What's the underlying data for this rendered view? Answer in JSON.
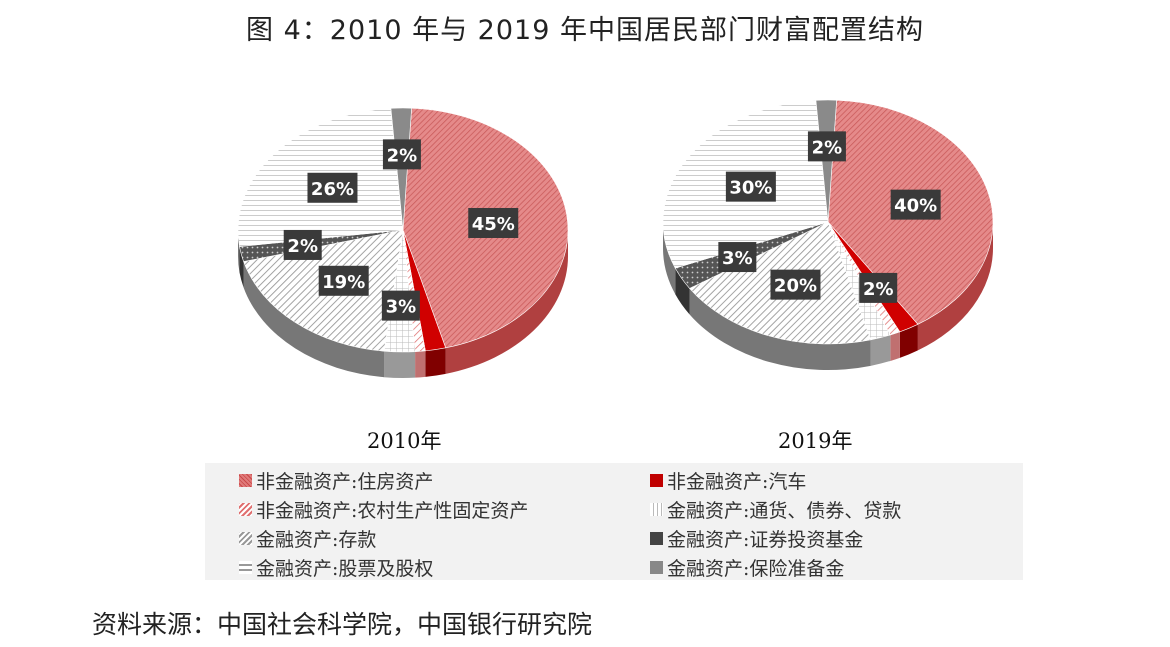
{
  "title": "图 4：2010 年与 2019 年中国居民部门财富配置结构",
  "source": "资料来源：中国社会科学院，中国银行研究院",
  "chart_data": [
    {
      "type": "pie",
      "title": "2010年",
      "categories": [
        "非金融资产:住房资产",
        "非金融资产:汽车",
        "非金融资产:农村生产性固定资产",
        "金融资产:通货、债券、贷款",
        "金融资产:存款",
        "金融资产:证券投资基金",
        "金融资产:股票及股权",
        "金融资产:保险准备金"
      ],
      "values": [
        45,
        2,
        1,
        3,
        19,
        2,
        26,
        2
      ],
      "labels": [
        "45%",
        "",
        "",
        "3%",
        "19%",
        "2%",
        "26%",
        "2%"
      ]
    },
    {
      "type": "pie",
      "title": "2019年",
      "categories": [
        "非金融资产:住房资产",
        "非金融资产:汽车",
        "非金融资产:农村生产性固定资产",
        "金融资产:通货、债券、贷款",
        "金融资产:存款",
        "金融资产:证券投资基金",
        "金融资产:股票及股权",
        "金融资产:保险准备金"
      ],
      "values": [
        40,
        2,
        1,
        2,
        20,
        3,
        30,
        2
      ],
      "labels": [
        "40%",
        "2%",
        "",
        "",
        "20%",
        "3%",
        "30%",
        "2%"
      ]
    }
  ],
  "legend": {
    "placement": "bottom",
    "items": [
      {
        "label": "非金融资产:住房资产",
        "color": "#e07a7a",
        "pattern": "dense-diagonal"
      },
      {
        "label": "非金融资产:汽车",
        "color": "#c00000",
        "pattern": "solid"
      },
      {
        "label": "非金融资产:农村生产性固定资产",
        "color": "#e8a0a0",
        "pattern": "wide-diagonal"
      },
      {
        "label": "金融资产:通货、债券、贷款",
        "color": "#bbbbbb",
        "pattern": "grid"
      },
      {
        "label": "金融资产:存款",
        "color": "#999999",
        "pattern": "diagonal"
      },
      {
        "label": "金融资产:证券投资基金",
        "color": "#444444",
        "pattern": "dots"
      },
      {
        "label": "金融资产:股票及股权",
        "color": "#aaaaaa",
        "pattern": "horizontal"
      },
      {
        "label": "金融资产:保险准备金",
        "color": "#888888",
        "pattern": "solid"
      }
    ]
  }
}
